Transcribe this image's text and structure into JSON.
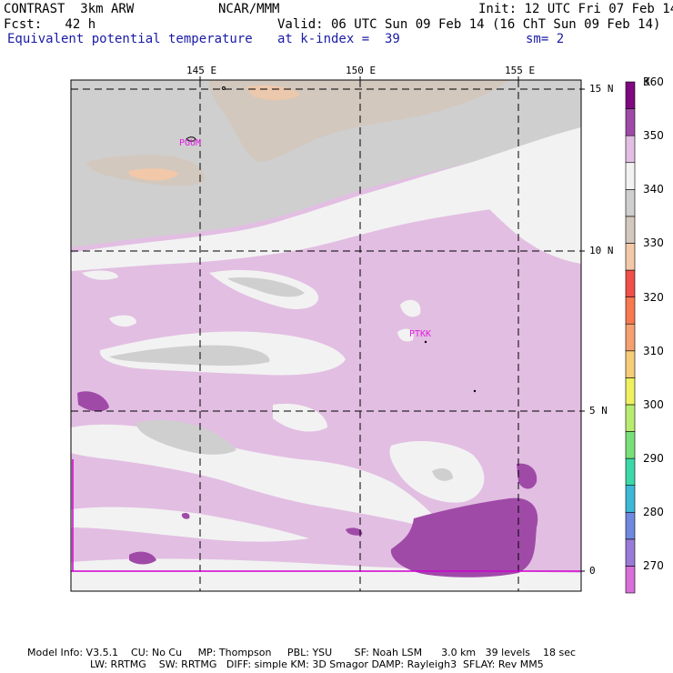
{
  "header": {
    "model": "CONTRAST  3km ARW",
    "org": "NCAR/MMM",
    "init": "Init: 12 UTC Fri 07 Feb 14",
    "fcst": "Fcst:   42 h",
    "valid": "Valid: 06 UTC Sun 09 Feb 14 (16 ChT Sun 09 Feb 14)",
    "field": "Equivalent potential temperature",
    "level": "at k-index =  39",
    "smooth": "sm= 2"
  },
  "axes": {
    "lon_labels": [
      "145 E",
      "150 E",
      "155 E"
    ],
    "lat_labels": [
      "15 N",
      "10 N",
      "5 N",
      "0"
    ]
  },
  "stations": [
    {
      "id": "PGUM"
    },
    {
      "id": "PTKK"
    }
  ],
  "colorbar": {
    "unit": "K",
    "levels": [
      270,
      280,
      290,
      300,
      310,
      320,
      330,
      340,
      350,
      360
    ],
    "colors": [
      "#d86ed8",
      "#9a7ad8",
      "#6f88e0",
      "#3cb8d8",
      "#3cd8a8",
      "#78e078",
      "#b8ec70",
      "#eef060",
      "#f6cc78",
      "#f4a070",
      "#f87850",
      "#f05048",
      "#f2c8a8",
      "#d2c8be",
      "#cfcfcf",
      "#f2f2f2",
      "#e2bee2",
      "#a04aa8",
      "#800880"
    ]
  },
  "footer": {
    "line1": "Model Info: V3.5.1    CU: No Cu     MP: Thompson     PBL: YSU       SF: Noah LSM      3.0 km   39 levels    18 sec",
    "line2": "LW: RRTMG    SW: RRTMG   DIFF: simple KM: 3D Smagor DAMP: Rayleigh3  SFLAY: Rev MM5"
  }
}
